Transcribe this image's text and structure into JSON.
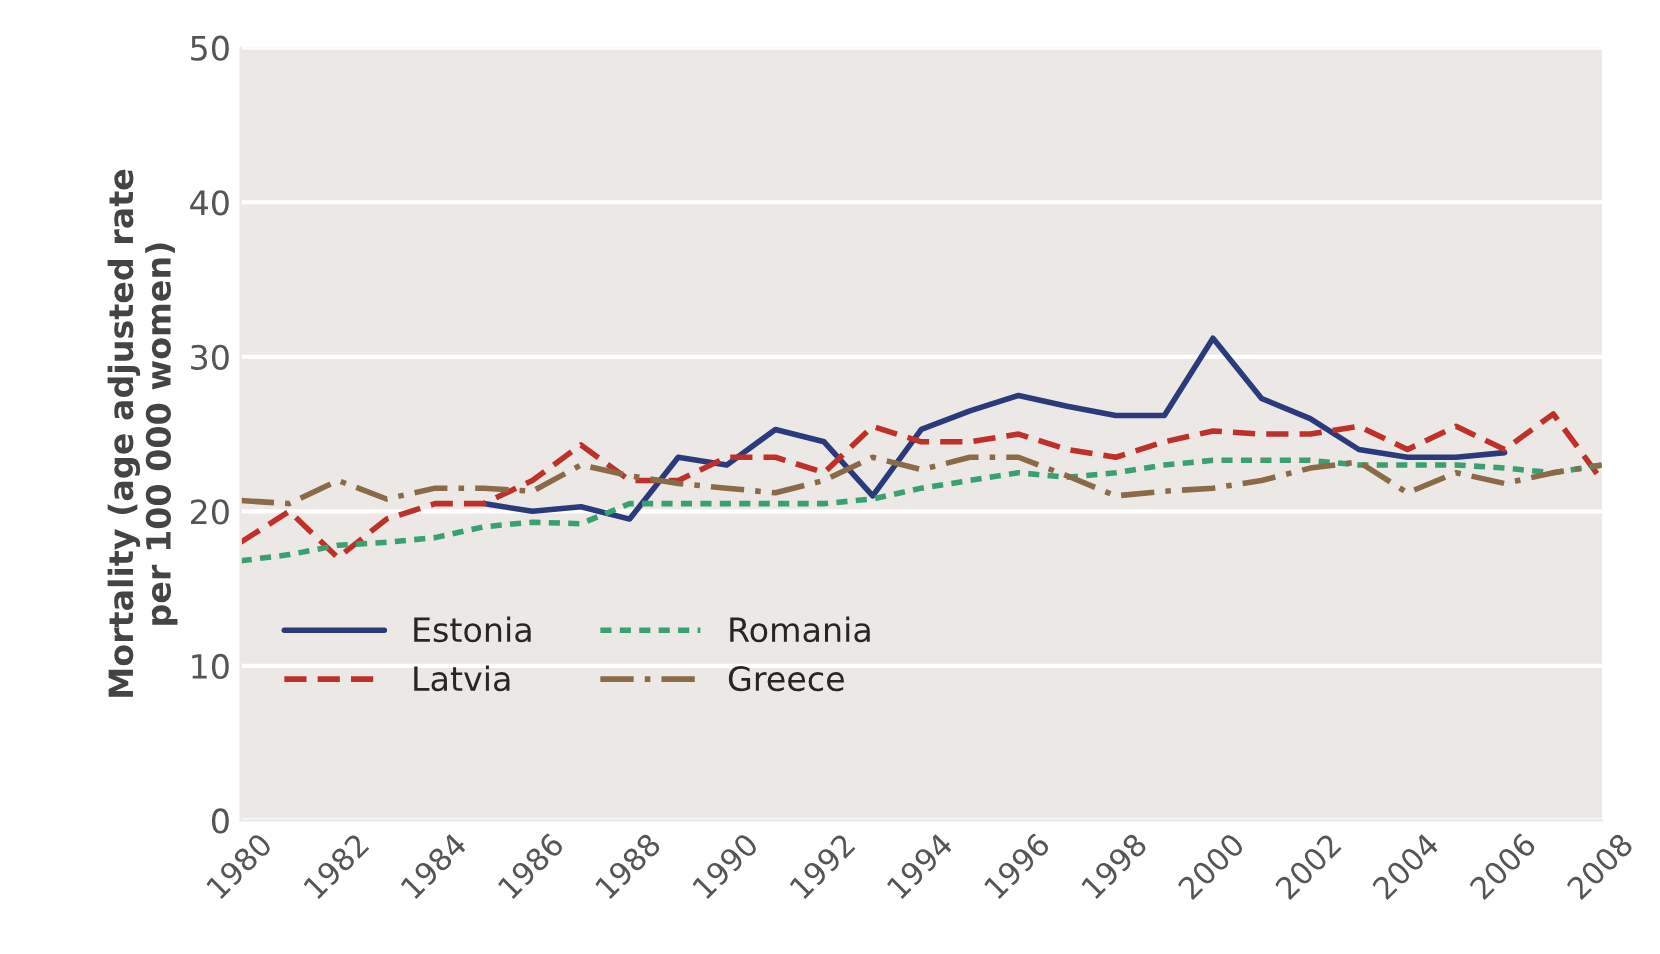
{
  "chart_data": {
    "type": "line",
    "ylabel": "Mortality (age adjusted rate\nper 100 000 women)",
    "x": [
      1980,
      1981,
      1982,
      1983,
      1984,
      1985,
      1986,
      1987,
      1988,
      1989,
      1990,
      1991,
      1992,
      1993,
      1994,
      1995,
      1996,
      1997,
      1998,
      1999,
      2000,
      2001,
      2002,
      2003,
      2004,
      2005,
      2006,
      2007,
      2008
    ],
    "series": [
      {
        "name": "Estonia",
        "color": "#2b3a7a",
        "line_style": "solid",
        "values": [
          null,
          null,
          null,
          null,
          null,
          20.5,
          20,
          20.3,
          19.5,
          23.5,
          23,
          25.3,
          24.5,
          21,
          25.3,
          26.5,
          27.5,
          26.8,
          26.2,
          26.2,
          31.2,
          27.3,
          26,
          24,
          23.5,
          23.5,
          23.8,
          null,
          null
        ]
      },
      {
        "name": "Latvia",
        "color": "#c0302a",
        "line_style": "dashed",
        "values": [
          18,
          20,
          17,
          19.5,
          20.5,
          20.5,
          22,
          24.3,
          22,
          22,
          23.5,
          23.5,
          22.5,
          25.5,
          24.5,
          24.5,
          25,
          24,
          23.5,
          24.5,
          25.2,
          25,
          25,
          25.5,
          24,
          25.5,
          24,
          26.3,
          22
        ]
      },
      {
        "name": "Romania",
        "color": "#3aa070",
        "line_style": "dotted",
        "values": [
          16.8,
          17.2,
          17.8,
          18,
          18.3,
          19,
          19.3,
          19.2,
          20.5,
          20.5,
          20.5,
          20.5,
          20.5,
          20.8,
          21.5,
          22,
          22.5,
          22.2,
          22.5,
          23,
          23.3,
          23.3,
          23.3,
          23,
          23,
          23,
          22.8,
          22.5,
          23
        ]
      },
      {
        "name": "Greece",
        "color": "#8b6a4a",
        "line_style": "dashdot",
        "values": [
          20.7,
          20.5,
          22,
          20.8,
          21.5,
          21.5,
          21.3,
          23,
          22.3,
          21.8,
          21.5,
          21.2,
          22,
          23.5,
          22.7,
          23.5,
          23.5,
          22.3,
          21,
          21.3,
          21.5,
          22,
          22.8,
          23.2,
          21.2,
          22.5,
          21.8,
          22.5,
          23
        ]
      }
    ],
    "xlim": [
      1980,
      2008
    ],
    "xticks": [
      1980,
      1982,
      1984,
      1986,
      1988,
      1990,
      1992,
      1994,
      1996,
      1998,
      2000,
      2002,
      2004,
      2006,
      2008
    ],
    "ylim": [
      0,
      50
    ],
    "yticks": [
      0,
      10,
      20,
      30,
      40,
      50
    ],
    "grid": "y",
    "legend": "bottom left"
  }
}
